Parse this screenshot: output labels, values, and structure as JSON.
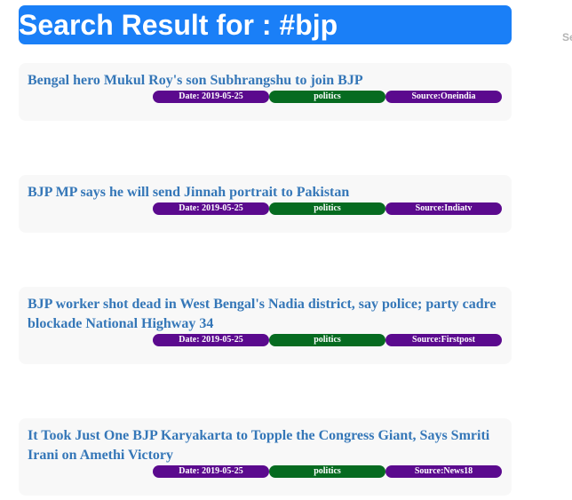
{
  "header": {
    "title": "Search Result for : #bjp",
    "side_text": "Se"
  },
  "colors": {
    "header_bg": "#1a7ff7",
    "title_link": "#3577b8",
    "date_badge": "#5b0a8e",
    "category_badge": "#066b20",
    "source_badge": "#5b0a8e",
    "card_bg": "#f8f8f8"
  },
  "results": [
    {
      "title": "Bengal hero Mukul Roy's son Subhrangshu to join BJP",
      "date": "Date: 2019-05-25",
      "category": "politics",
      "source": "Source:Oneindia"
    },
    {
      "title": "BJP MP says he will send Jinnah portrait to Pakistan",
      "date": "Date: 2019-05-25",
      "category": "politics",
      "source": "Source:Indiatv"
    },
    {
      "title": "BJP worker shot dead in West Bengal's Nadia district, say police; party cadre blockade National Highway 34",
      "date": "Date: 2019-05-25",
      "category": "politics",
      "source": "Source:Firstpost"
    },
    {
      "title": "It Took Just One BJP Karyakarta to Topple the Congress Giant, Says Smriti Irani on Amethi Victory",
      "date": "Date: 2019-05-25",
      "category": "politics",
      "source": "Source:News18"
    }
  ]
}
